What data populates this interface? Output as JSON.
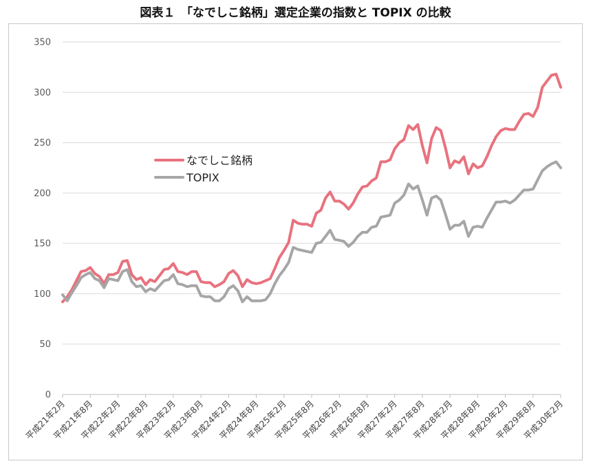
{
  "chart_data": {
    "type": "line",
    "title": "図表１　「なでしこ銘柄」選定企業の指数と TOPIX の比較",
    "xlabel": "",
    "ylabel": "",
    "ylim": [
      0,
      350
    ],
    "yticks": [
      "0",
      "50",
      "100",
      "150",
      "200",
      "250",
      "300",
      "350"
    ],
    "grid": true,
    "legend_position": "center-left",
    "colors": {
      "nadeshiko": "#e8727e",
      "topix": "#a6a6a6"
    },
    "x_tick_labels": [
      "平成21年2月",
      "平成21年8月",
      "平成22年2月",
      "平成22年8月",
      "平成23年2月",
      "平成23年8月",
      "平成24年2月",
      "平成24年8月",
      "平成25年2月",
      "平成25年8月",
      "平成26年2月",
      "平成26年8月",
      "平成27年2月",
      "平成27年8月",
      "平成28年2月",
      "平成28年8月",
      "平成29年2月",
      "平成29年8月",
      "平成30年2月"
    ],
    "series": [
      {
        "name": "なでしこ銘柄",
        "values": [
          92,
          97,
          104,
          113,
          122,
          123,
          126,
          120,
          117,
          110,
          119,
          119,
          121,
          132,
          133,
          119,
          114,
          116,
          109,
          114,
          112,
          118,
          124,
          125,
          130,
          122,
          121,
          119,
          122,
          122,
          112,
          111,
          111,
          107,
          109,
          112,
          120,
          123,
          118,
          107,
          114,
          111,
          110,
          111,
          113,
          115,
          125,
          136,
          143,
          151,
          173,
          170,
          169,
          169,
          167,
          180,
          183,
          195,
          201,
          192,
          192,
          189,
          184,
          190,
          199,
          206,
          207,
          212,
          215,
          231,
          231,
          233,
          244,
          250,
          253,
          267,
          263,
          268,
          247,
          230,
          254,
          265,
          262,
          245,
          225,
          232,
          230,
          236,
          219,
          229,
          225,
          227,
          236,
          247,
          256,
          262,
          264,
          263,
          263,
          271,
          278,
          279,
          276,
          285,
          305,
          311,
          317,
          318,
          305
        ]
      },
      {
        "name": "TOPIX",
        "values": [
          99,
          93,
          101,
          108,
          116,
          119,
          121,
          115,
          113,
          106,
          115,
          114,
          113,
          122,
          124,
          112,
          107,
          108,
          102,
          105,
          103,
          108,
          113,
          114,
          119,
          110,
          109,
          107,
          108,
          108,
          98,
          97,
          97,
          93,
          93,
          97,
          105,
          108,
          103,
          92,
          97,
          93,
          93,
          93,
          94,
          100,
          110,
          118,
          124,
          131,
          146,
          144,
          143,
          142,
          141,
          150,
          151,
          157,
          163,
          154,
          153,
          152,
          147,
          151,
          157,
          161,
          161,
          166,
          167,
          176,
          177,
          178,
          190,
          193,
          198,
          209,
          204,
          207,
          193,
          178,
          195,
          197,
          193,
          179,
          164,
          168,
          168,
          172,
          157,
          166,
          167,
          166,
          175,
          183,
          191,
          191,
          192,
          190,
          193,
          198,
          203,
          203,
          204,
          213,
          222,
          226,
          229,
          231,
          225
        ]
      }
    ]
  }
}
